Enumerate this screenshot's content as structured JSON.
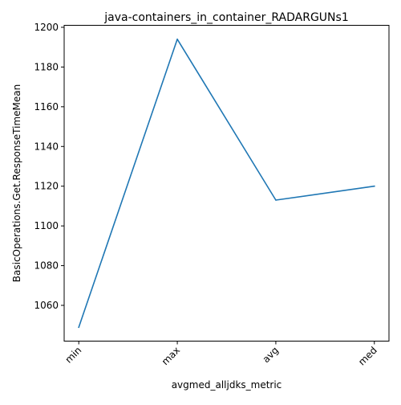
{
  "chart_data": {
    "type": "line",
    "title": "java-containers_in_container_RADARGUNs1",
    "xlabel": "avgmed_alljdks_metric",
    "ylabel": "BasicOperations.Get.ResponseTimeMean",
    "categories": [
      "min",
      "max",
      "avg",
      "med"
    ],
    "series": [
      {
        "values": [
          1049,
          1194,
          1113,
          1120
        ],
        "color": "#1f77b4"
      }
    ],
    "ylim": [
      1042,
      1201
    ],
    "yticks": [
      1060,
      1080,
      1100,
      1120,
      1140,
      1160,
      1180,
      1200
    ],
    "ytick_labels": [
      "1060",
      "1080",
      "1100",
      "1120",
      "1140",
      "1160",
      "1180",
      "1200"
    ],
    "grid": false,
    "legend": "none"
  }
}
